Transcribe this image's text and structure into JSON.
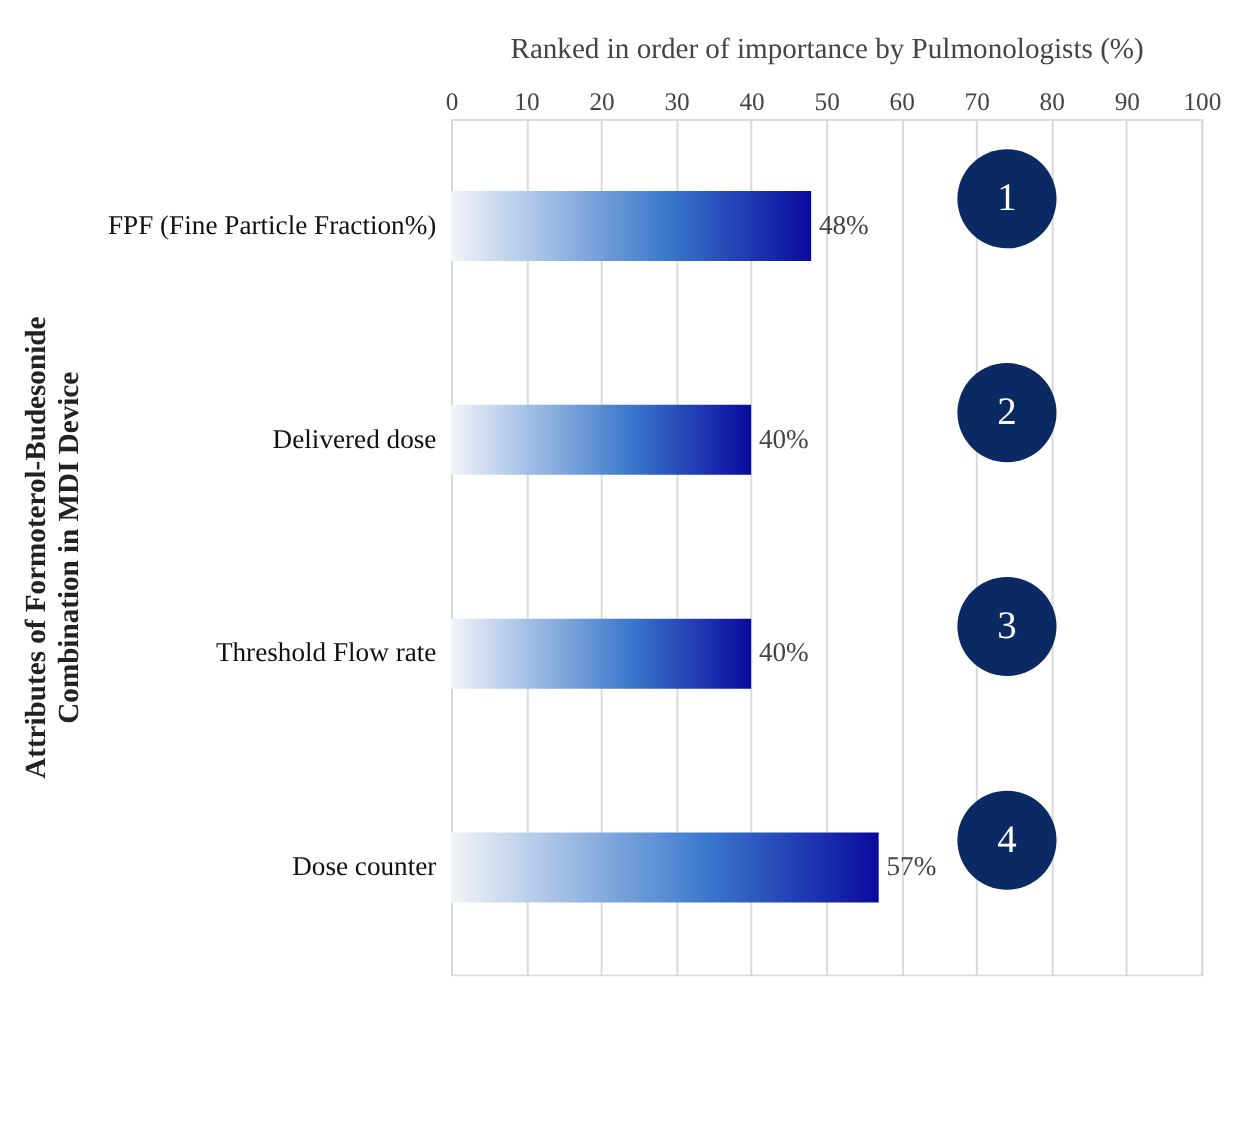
{
  "chart_data": {
    "type": "bar",
    "orientation": "horizontal",
    "xlabel": "Ranked in order of importance by Pulmonologists (%)",
    "ylabel": "Attributes of Formoterol-Budesonide\nCombination in MDI Device",
    "categories": [
      "FPF (Fine Particle Fraction%)",
      "Delivered dose",
      "Threshold Flow rate",
      "Dose counter"
    ],
    "values": [
      48,
      40,
      40,
      57
    ],
    "value_labels": [
      "48%",
      "40%",
      "40%",
      "57%"
    ],
    "color": "#0a0a9e",
    "xlim": [
      0,
      100
    ],
    "xticks": [
      0,
      10,
      20,
      30,
      40,
      50,
      60,
      70,
      80,
      90,
      100
    ],
    "grid": "x",
    "annotations": [
      "1",
      "2",
      "3",
      "4"
    ]
  }
}
